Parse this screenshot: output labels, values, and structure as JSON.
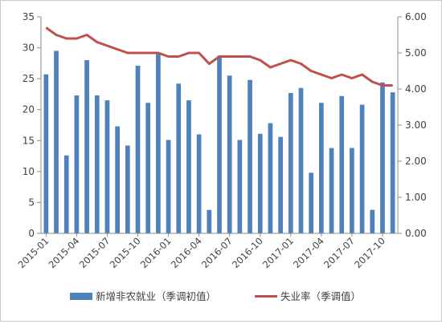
{
  "chart_data": {
    "type": "bar+line",
    "x_tick_labels": [
      "2015-01",
      "2015-04",
      "2015-07",
      "2015-10",
      "2016-01",
      "2016-04",
      "2016-07",
      "2016-10",
      "2017-01",
      "2017-04",
      "2017-07",
      "2017-10"
    ],
    "months": [
      "2015-01",
      "2015-02",
      "2015-03",
      "2015-04",
      "2015-05",
      "2015-06",
      "2015-07",
      "2015-08",
      "2015-09",
      "2015-10",
      "2015-11",
      "2015-12",
      "2016-01",
      "2016-02",
      "2016-03",
      "2016-04",
      "2016-05",
      "2016-06",
      "2016-07",
      "2016-08",
      "2016-09",
      "2016-10",
      "2016-11",
      "2016-12",
      "2017-01",
      "2017-02",
      "2017-03",
      "2017-04",
      "2017-05",
      "2017-06",
      "2017-07",
      "2017-08",
      "2017-09",
      "2017-10",
      "2017-11"
    ],
    "series": [
      {
        "name": "新增非农就业（季调初值）",
        "type": "bar",
        "axis": "left",
        "color": "#4f81bd",
        "values": [
          25.7,
          29.5,
          12.6,
          22.3,
          28.0,
          22.3,
          21.5,
          17.3,
          14.2,
          27.1,
          21.1,
          29.2,
          15.1,
          24.2,
          21.5,
          16.0,
          3.8,
          28.7,
          25.5,
          15.1,
          24.8,
          16.1,
          17.8,
          15.6,
          22.7,
          23.5,
          9.8,
          21.1,
          13.8,
          22.2,
          13.8,
          20.8,
          3.8,
          24.4,
          22.8
        ]
      },
      {
        "name": "失业率（季调值）",
        "type": "line",
        "axis": "right",
        "color": "#c0504d",
        "values": [
          5.7,
          5.5,
          5.4,
          5.4,
          5.5,
          5.3,
          5.2,
          5.1,
          5.0,
          5.0,
          5.0,
          5.0,
          4.9,
          4.9,
          5.0,
          5.0,
          4.7,
          4.9,
          4.9,
          4.9,
          4.9,
          4.8,
          4.6,
          4.7,
          4.8,
          4.7,
          4.5,
          4.4,
          4.3,
          4.4,
          4.3,
          4.4,
          4.2,
          4.1,
          4.1
        ]
      }
    ],
    "left_axis": {
      "min": 0,
      "max": 35,
      "step": 5,
      "tick_labels": [
        "0",
        "5",
        "10",
        "15",
        "20",
        "25",
        "30",
        "35"
      ]
    },
    "right_axis": {
      "min": 0,
      "max": 6,
      "step": 1,
      "tick_labels": [
        "0.00",
        "1.00",
        "2.00",
        "3.00",
        "4.00",
        "5.00",
        "6.00"
      ]
    },
    "legend_position": "bottom",
    "grid": false
  }
}
